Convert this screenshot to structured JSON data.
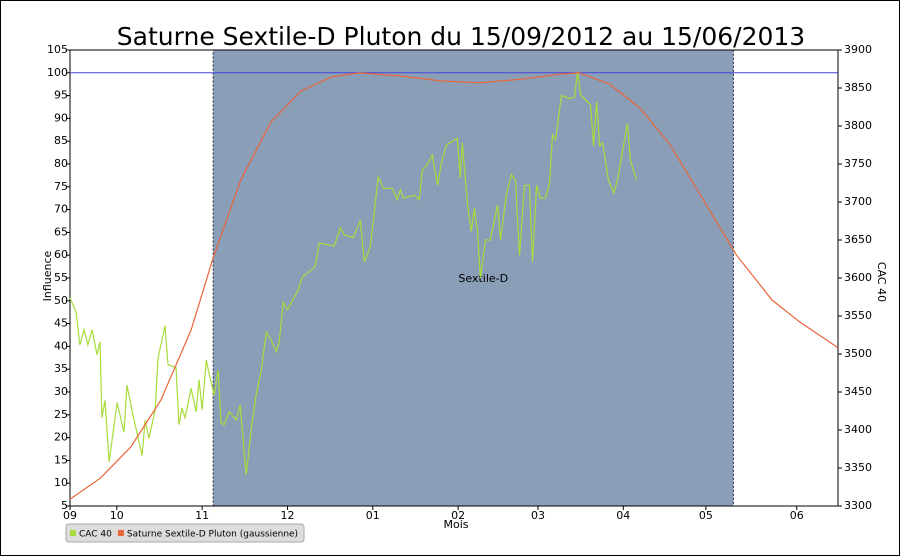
{
  "chart_data": {
    "type": "line",
    "title": "Saturne Sextile-D Pluton du 15/09/2012 au 15/06/2013",
    "xlabel": "Mois",
    "ylabel": "Influence",
    "y2label": "CAC 40",
    "xlim": [
      0,
      279
    ],
    "xticks": [
      {
        "value": 0,
        "label": "09"
      },
      {
        "value": 17,
        "label": "10"
      },
      {
        "value": 48,
        "label": "11"
      },
      {
        "value": 79,
        "label": "12"
      },
      {
        "value": 110,
        "label": "01"
      },
      {
        "value": 141,
        "label": "02"
      },
      {
        "value": 170,
        "label": "03"
      },
      {
        "value": 201,
        "label": "04"
      },
      {
        "value": 231,
        "label": "05"
      },
      {
        "value": 264,
        "label": "06"
      }
    ],
    "ylim": [
      5,
      105
    ],
    "yticks": [
      5,
      10,
      15,
      20,
      25,
      30,
      35,
      40,
      45,
      50,
      55,
      60,
      65,
      70,
      75,
      80,
      85,
      90,
      95,
      100,
      105
    ],
    "y2lim": [
      3300,
      3900
    ],
    "y2ticks": [
      3300,
      3350,
      3400,
      3450,
      3500,
      3550,
      3600,
      3650,
      3700,
      3750,
      3800,
      3850,
      3900
    ],
    "grid": false,
    "legend": "bottom-left",
    "highlight": {
      "x": [
        52,
        241
      ],
      "color": "#8a9eb8",
      "label": "Sextile-D",
      "label_y": 54.8
    },
    "hline": {
      "y": 100,
      "color": "#4444dd"
    },
    "series": [
      {
        "name": "CAC 40",
        "color": "#a8dc3c",
        "axis": "y2",
        "x": [
          0,
          2.2,
          3.6,
          5.1,
          6.5,
          8,
          9.8,
          10.9,
          11.6,
          12.7,
          14.2,
          17.1,
          19.6,
          20.7,
          22.5,
          26.2,
          27.3,
          28.7,
          30.9,
          32,
          34.5,
          35.6,
          38.5,
          39.6,
          40.7,
          41.8,
          44,
          45.8,
          46.9,
          48,
          49.5,
          50.9,
          52.4,
          53.8,
          54.9,
          56,
          57.8,
          60.4,
          61.8,
          64,
          65.8,
          67.6,
          69.5,
          71.3,
          73.1,
          74.9,
          76,
          77.5,
          78.9,
          82.9,
          84.4,
          89.1,
          90.5,
          96,
          98.2,
          99.6,
          102.9,
          105.5,
          106.9,
          109.1,
          112,
          113.8,
          117.1,
          118.9,
          120,
          121.1,
          125.1,
          126.9,
          128,
          129.8,
          131.6,
          133.5,
          134.9,
          136.7,
          140.7,
          141.8,
          142.5,
          144.4,
          145.8,
          146.9,
          148,
          149.1,
          150.9,
          152.7,
          155.3,
          156.4,
          158.5,
          160.4,
          161.8,
          163.3,
          165.1,
          166.9,
          168,
          169.5,
          170.9,
          172.7,
          174.2,
          175.3,
          176.4,
          178.5,
          181.5,
          183.3,
          184.4,
          185.5,
          189.1,
          190.2,
          191.3,
          192.4,
          193.5,
          195.6,
          197.5,
          198.9,
          202.5,
          203.6,
          205.8
        ],
        "values": [
          3574,
          3555,
          3512,
          3532,
          3512,
          3532,
          3499,
          3516,
          3416,
          3439,
          3358,
          3436,
          3397,
          3459,
          3426,
          3366,
          3413,
          3389,
          3426,
          3495,
          3537,
          3486,
          3482,
          3407,
          3429,
          3416,
          3455,
          3424,
          3466,
          3426,
          3492,
          3468,
          3446,
          3479,
          3409,
          3407,
          3424,
          3413,
          3433,
          3341,
          3400,
          3446,
          3479,
          3529,
          3518,
          3503,
          3516,
          3568,
          3558,
          3584,
          3601,
          3615,
          3646,
          3642,
          3666,
          3657,
          3653,
          3676,
          3621,
          3641,
          3733,
          3718,
          3718,
          3703,
          3716,
          3705,
          3709,
          3703,
          3742,
          3749,
          3762,
          3722,
          3751,
          3775,
          3784,
          3732,
          3778,
          3697,
          3661,
          3692,
          3663,
          3600,
          3650,
          3650,
          3696,
          3650,
          3709,
          3736,
          3729,
          3630,
          3722,
          3722,
          3621,
          3722,
          3705,
          3705,
          3724,
          3788,
          3782,
          3840,
          3836,
          3838,
          3871,
          3841,
          3828,
          3774,
          3832,
          3774,
          3778,
          3729,
          3712,
          3729,
          3803,
          3755,
          3729
        ]
      },
      {
        "name": "Saturne Sextile-D Pluton (gaussienne)",
        "color": "#e8663a",
        "x": [
          0,
          11,
          22,
          33,
          44,
          52,
          62,
          73,
          84,
          95,
          105,
          120,
          135,
          149,
          164,
          178,
          185,
          196,
          207,
          218,
          229,
          242,
          255,
          265,
          279
        ],
        "values": [
          6.5,
          11.1,
          17.9,
          28.2,
          43.6,
          59.4,
          76.5,
          89.2,
          96,
          99.1,
          100,
          99.3,
          98.2,
          97.8,
          98.6,
          99.7,
          100,
          97.5,
          92.3,
          84.2,
          73.2,
          60.1,
          50.2,
          45.4,
          39.7
        ]
      }
    ]
  }
}
